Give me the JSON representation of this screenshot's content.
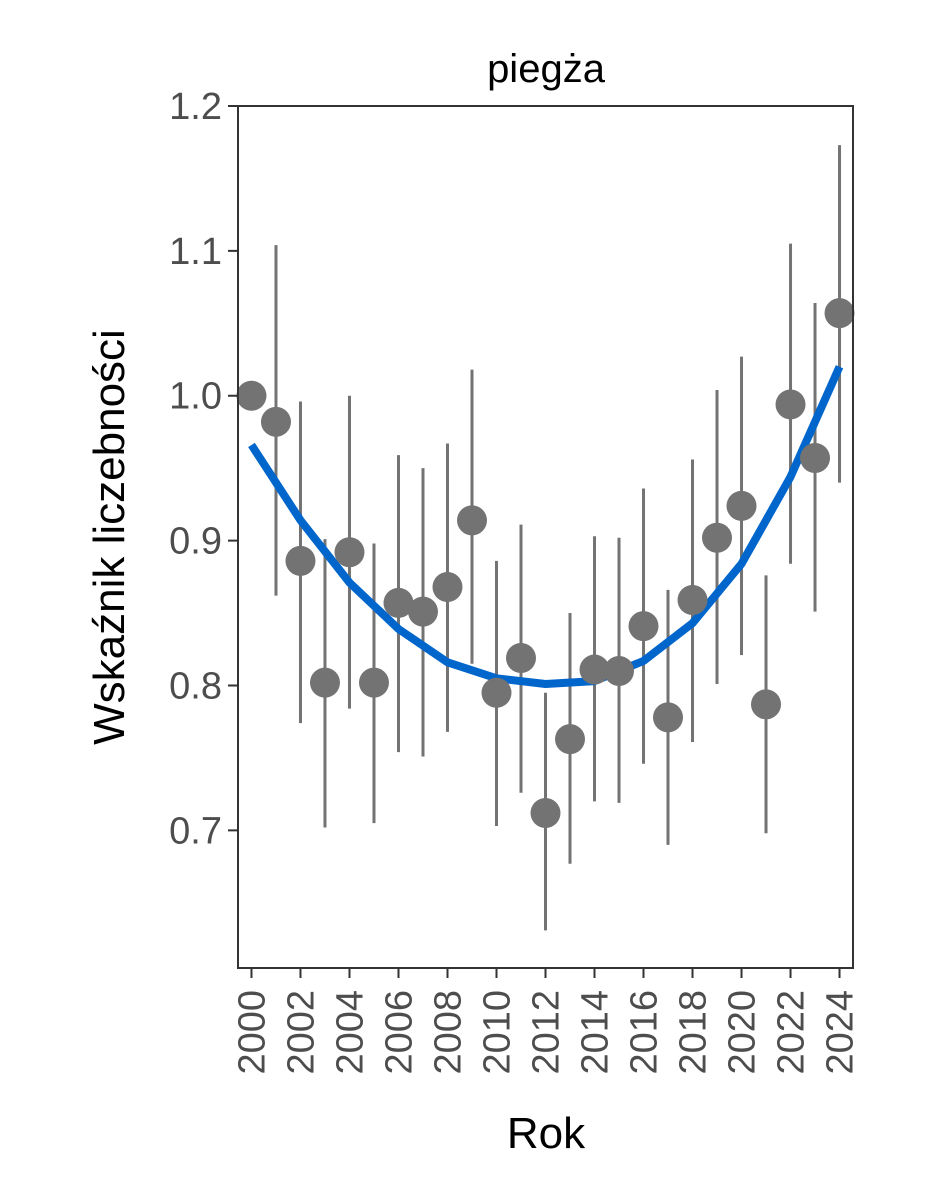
{
  "chart_data": {
    "type": "scatter",
    "title": "piegża",
    "xlabel": "Rok",
    "ylabel": "Wskaźnik liczebności",
    "xlim": [
      1999.45,
      2024.55
    ],
    "ylim": [
      0.605,
      1.2
    ],
    "x_ticks": [
      2000,
      2002,
      2004,
      2006,
      2008,
      2010,
      2012,
      2014,
      2016,
      2018,
      2020,
      2022,
      2024
    ],
    "x_tick_labels": [
      "2000",
      "2002",
      "2004",
      "2006",
      "2008",
      "2010",
      "2012",
      "2014",
      "2016",
      "2018",
      "2020",
      "2022",
      "2024"
    ],
    "y_ticks": [
      0.7,
      0.8,
      0.9,
      1.0,
      1.1,
      1.2
    ],
    "y_tick_labels": [
      "0.7",
      "0.8",
      "0.9",
      "1.0",
      "1.1",
      "1.2"
    ],
    "grid": false,
    "series": [
      {
        "type": "scatter-errorbar",
        "x": [
          2000,
          2001,
          2002,
          2003,
          2004,
          2005,
          2006,
          2007,
          2008,
          2009,
          2010,
          2011,
          2012,
          2013,
          2014,
          2015,
          2016,
          2017,
          2018,
          2019,
          2020,
          2021,
          2022,
          2023,
          2024
        ],
        "y": [
          1.0,
          0.982,
          0.886,
          0.802,
          0.892,
          0.802,
          0.857,
          0.851,
          0.868,
          0.914,
          0.795,
          0.819,
          0.712,
          0.763,
          0.811,
          0.81,
          0.841,
          0.778,
          0.859,
          0.902,
          0.924,
          0.787,
          0.994,
          0.957,
          1.057
        ],
        "lower": [
          null,
          0.862,
          0.774,
          0.702,
          0.784,
          0.705,
          0.754,
          0.751,
          0.768,
          0.815,
          0.703,
          0.726,
          0.631,
          0.677,
          0.72,
          0.719,
          0.746,
          0.69,
          0.761,
          0.801,
          0.821,
          0.698,
          0.884,
          0.851,
          0.94
        ],
        "upper": [
          null,
          1.104,
          0.996,
          0.901,
          1.0,
          0.898,
          0.959,
          0.95,
          0.967,
          1.018,
          0.886,
          0.911,
          0.795,
          0.85,
          0.903,
          0.902,
          0.936,
          0.866,
          0.956,
          1.004,
          1.027,
          0.876,
          1.105,
          1.064,
          1.173
        ],
        "color": "#737373"
      },
      {
        "type": "line",
        "x": [
          2000,
          2002,
          2004,
          2006,
          2008,
          2010,
          2012,
          2014,
          2016,
          2018,
          2020,
          2022,
          2024
        ],
        "y": [
          0.966,
          0.914,
          0.871,
          0.839,
          0.816,
          0.805,
          0.801,
          0.803,
          0.817,
          0.843,
          0.884,
          0.944,
          1.02
        ],
        "color": "#0066cc"
      }
    ]
  }
}
